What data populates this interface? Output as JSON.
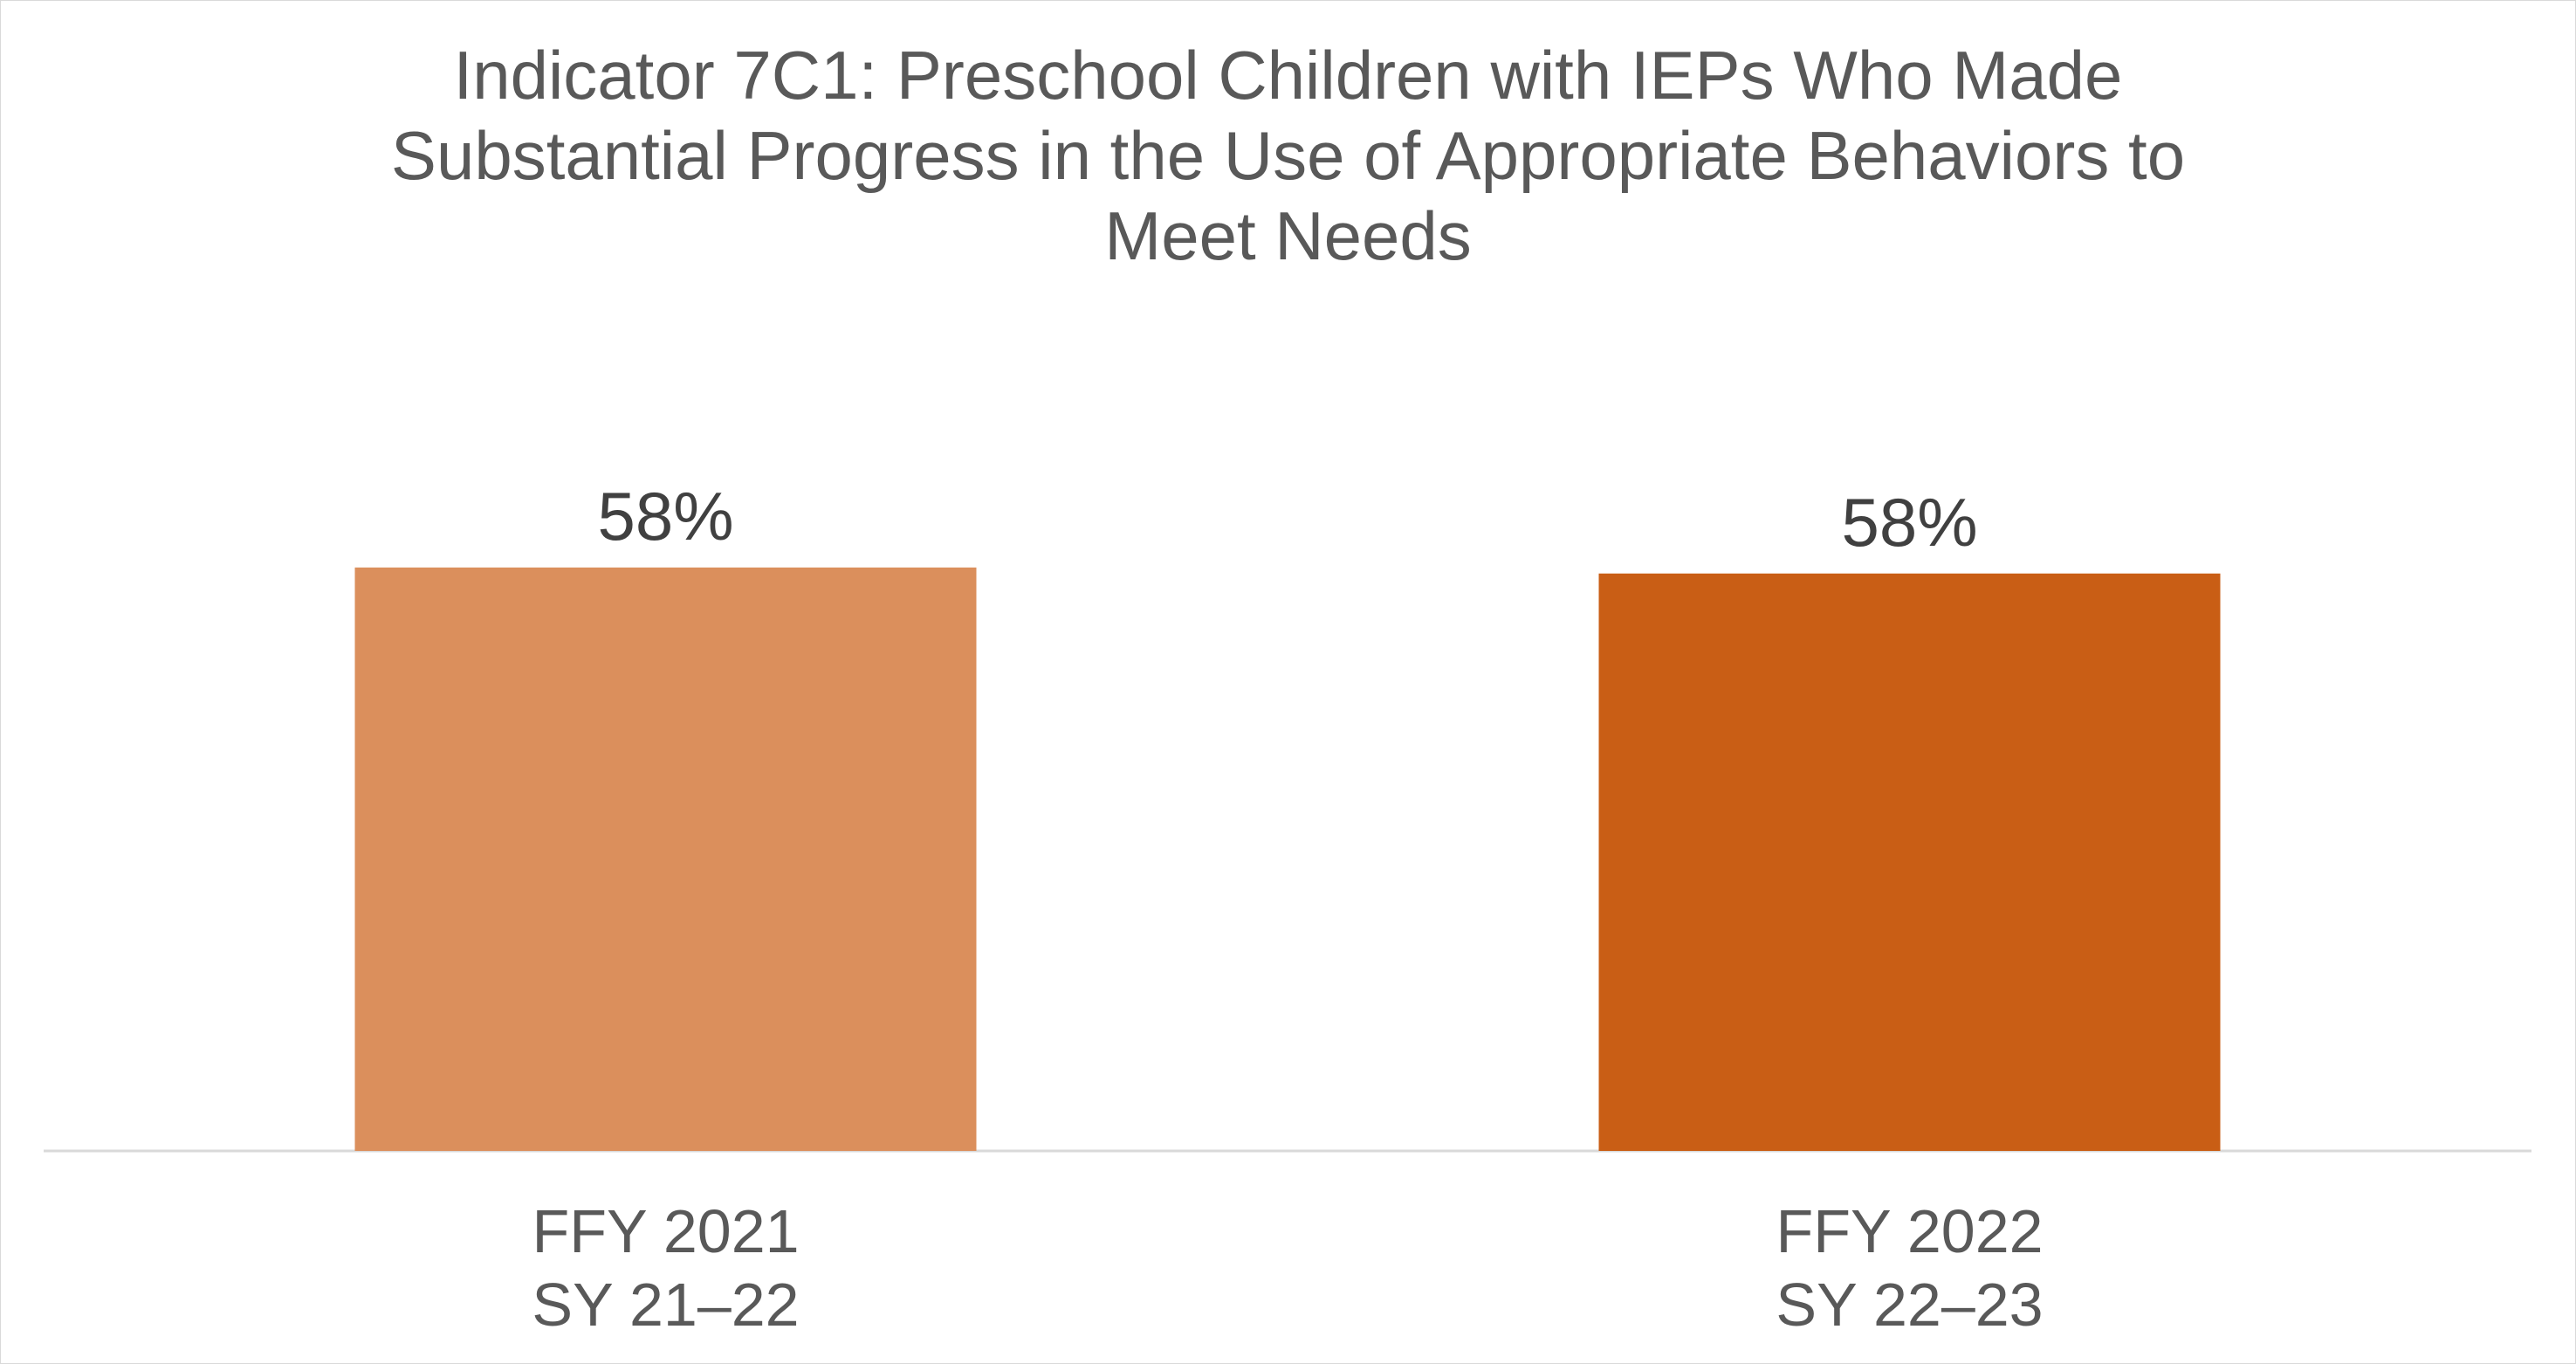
{
  "chart_data": {
    "type": "bar",
    "title": "Indicator 7C1: Preschool Children with IEPs Who Made Substantial Progress in the Use of Appropriate Behaviors to Meet Needs",
    "title_lines": [
      "Indicator 7C1: Preschool Children with IEPs Who Made",
      "Substantial Progress in the Use of Appropriate Behaviors to",
      "Meet Needs"
    ],
    "categories": [
      [
        "FFY 2021",
        "SY 21–22"
      ],
      [
        "FFY 2022",
        "SY 22–23"
      ]
    ],
    "values": [
      58.2,
      57.6
    ],
    "data_labels": [
      "58%",
      "58%"
    ],
    "colors": [
      "#DB8F5C",
      "#C95E15"
    ],
    "ylim": [
      0,
      100
    ],
    "grid": false,
    "legend": "none",
    "xlabel": "",
    "ylabel": ""
  }
}
